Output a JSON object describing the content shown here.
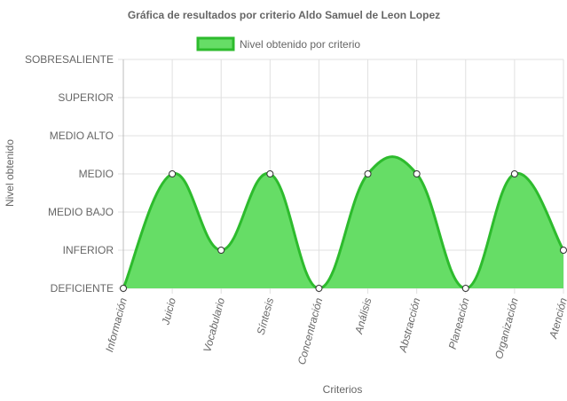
{
  "chart_data": {
    "type": "area",
    "title": "Gráfica de resultados por criterio Aldo Samuel de Leon Lopez",
    "xlabel": "Criterios",
    "ylabel": "Nivel obtenido",
    "categories": [
      "Información",
      "Juicio",
      "Vocabulario",
      "Síntesis",
      "Concentración",
      "Análisis",
      "Abstracción",
      "Planeación",
      "Organización",
      "Atención"
    ],
    "y_levels": [
      "DEFICIENTE",
      "INFERIOR",
      "MEDIO BAJO",
      "MEDIO",
      "MEDIO ALTO",
      "SUPERIOR",
      "SOBRESALIENTE"
    ],
    "series": [
      {
        "name": "Nivel obtenido por criterio",
        "values": [
          0,
          3,
          1,
          3,
          0,
          3,
          3,
          0,
          3,
          1
        ]
      }
    ],
    "ylim": [
      0,
      6
    ],
    "grid": true,
    "legend": "top-center",
    "colors": {
      "fill": "#66dd66",
      "stroke": "#2dbb2d",
      "grid": "#e0e0e0",
      "point_fill": "#ffffff",
      "point_stroke": "#333333"
    }
  }
}
